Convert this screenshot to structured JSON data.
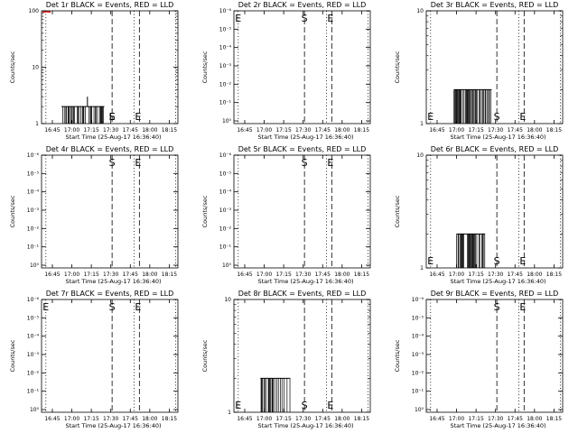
{
  "chart_data": [
    {
      "type": "bar",
      "title": "Det 1r BLACK = Events, RED = LLD",
      "xlabel": "Start Time (25-Aug-17 16:36:40)",
      "ylabel": "Counts/sec",
      "x_ticks": [
        "16:45",
        "17:00",
        "17:15",
        "17:30",
        "17:45",
        "18:00",
        "18:15"
      ],
      "y_ticks": [
        "1",
        "10",
        "100"
      ],
      "y_scale": "log",
      "ylim": [
        1,
        100
      ],
      "events": {
        "x_range": [
          "16:52",
          "17:25"
        ],
        "level": 2,
        "spikes": [
          {
            "x": "17:12",
            "y": 3
          }
        ]
      },
      "lld": {
        "x_range": [
          "16:36",
          "16:42"
        ],
        "level": 100
      },
      "markers": [
        {
          "label": "E",
          "x": "17:31"
        },
        {
          "label": "S",
          "x": "17:31"
        },
        {
          "label": "E",
          "x": "17:51"
        }
      ]
    },
    {
      "type": "bar",
      "title": "Det 2r BLACK = Events, RED = LLD",
      "xlabel": "Start Time (25-Aug-17 16:36:40)",
      "ylabel": "Counts/sec",
      "x_ticks": [
        "16:45",
        "17:00",
        "17:15",
        "17:30",
        "17:45",
        "18:00",
        "18:15"
      ],
      "y_ticks": [
        "10⁰",
        "10⁻¹",
        "10⁻²",
        "10⁻³",
        "10⁻⁴",
        "10⁻⁵",
        "10⁻⁶"
      ],
      "y_scale": "log",
      "ylim": [
        1,
        1e-06
      ],
      "markers": [
        {
          "label": "E",
          "x": "16:40"
        },
        {
          "label": "S",
          "x": "17:31"
        },
        {
          "label": "E",
          "x": "17:51"
        }
      ]
    },
    {
      "type": "bar",
      "title": "Det 3r BLACK = Events, RED = LLD",
      "xlabel": "Start Time (25-Aug-17 16:36:40)",
      "ylabel": "Counts/sec",
      "x_ticks": [
        "16:45",
        "17:00",
        "17:15",
        "17:30",
        "17:45",
        "18:00",
        "18:15"
      ],
      "y_ticks": [
        "1",
        "10"
      ],
      "y_scale": "log",
      "ylim": [
        1,
        10
      ],
      "events": {
        "x_range": [
          "16:58",
          "17:27"
        ],
        "level": 2
      },
      "markers": [
        {
          "label": "E",
          "x": "16:40"
        },
        {
          "label": "S",
          "x": "17:31"
        },
        {
          "label": "E",
          "x": "17:51"
        }
      ]
    },
    {
      "type": "bar",
      "title": "Det 4r BLACK = Events, RED = LLD",
      "xlabel": "Start Time (25-Aug-17 16:36:40)",
      "ylabel": "Counts/sec",
      "x_ticks": [
        "16:45",
        "17:00",
        "17:15",
        "17:30",
        "17:45",
        "18:00",
        "18:15"
      ],
      "y_ticks": [
        "10⁰",
        "10⁻¹",
        "10⁻²",
        "10⁻³",
        "10⁻⁴",
        "10⁻⁵",
        "10⁻⁶"
      ],
      "y_scale": "log",
      "ylim": [
        1,
        1e-06
      ],
      "markers": [
        {
          "label": "S",
          "x": "17:31"
        },
        {
          "label": "E",
          "x": "17:51"
        }
      ]
    },
    {
      "type": "bar",
      "title": "Det 5r BLACK = Events, RED = LLD",
      "xlabel": "Start Time (25-Aug-17 16:36:40)",
      "ylabel": "Counts/sec",
      "x_ticks": [
        "16:45",
        "17:00",
        "17:15",
        "17:30",
        "17:45",
        "18:00",
        "18:15"
      ],
      "y_ticks": [
        "10⁰",
        "10⁻¹",
        "10⁻²",
        "10⁻³",
        "10⁻⁴",
        "10⁻⁵",
        "10⁻⁶"
      ],
      "y_scale": "log",
      "ylim": [
        1,
        1e-06
      ],
      "markers": [
        {
          "label": "S",
          "x": "17:31"
        },
        {
          "label": "E",
          "x": "17:51"
        }
      ]
    },
    {
      "type": "bar",
      "title": "Det 6r BLACK = Events, RED = LLD",
      "xlabel": "Start Time (25-Aug-17 16:36:40)",
      "ylabel": "Counts/sec",
      "x_ticks": [
        "16:45",
        "17:00",
        "17:15",
        "17:30",
        "17:45",
        "18:00",
        "18:15"
      ],
      "y_ticks": [
        "1",
        "10"
      ],
      "y_scale": "log",
      "ylim": [
        1,
        10
      ],
      "events": {
        "x_range": [
          "17:00",
          "17:22"
        ],
        "level": 2
      },
      "markers": [
        {
          "label": "E",
          "x": "16:40"
        },
        {
          "label": "S",
          "x": "17:31"
        },
        {
          "label": "E",
          "x": "17:51"
        }
      ]
    },
    {
      "type": "bar",
      "title": "Det 7r BLACK = Events, RED = LLD",
      "xlabel": "Start Time (25-Aug-17 16:36:40)",
      "ylabel": "Counts/sec",
      "x_ticks": [
        "16:45",
        "17:00",
        "17:15",
        "17:30",
        "17:45",
        "18:00",
        "18:15"
      ],
      "y_ticks": [
        "10⁰",
        "10⁻¹",
        "10⁻²",
        "10⁻³",
        "10⁻⁴",
        "10⁻⁵",
        "10⁻⁶"
      ],
      "y_scale": "log",
      "ylim": [
        1,
        1e-06
      ],
      "markers": [
        {
          "label": "E",
          "x": "16:40"
        },
        {
          "label": "S",
          "x": "17:31"
        },
        {
          "label": "E",
          "x": "17:51"
        }
      ]
    },
    {
      "type": "bar",
      "title": "Det 8r BLACK = Events, RED = LLD",
      "xlabel": "Start Time (25-Aug-17 16:36:40)",
      "ylabel": "Counts/sec",
      "x_ticks": [
        "16:45",
        "17:00",
        "17:15",
        "17:30",
        "17:45",
        "18:00",
        "18:15"
      ],
      "y_ticks": [
        "1",
        "10"
      ],
      "y_scale": "log",
      "ylim": [
        1,
        10
      ],
      "events": {
        "x_range": [
          "16:57",
          "17:20"
        ],
        "level": 2
      },
      "markers": [
        {
          "label": "E",
          "x": "16:40"
        },
        {
          "label": "S",
          "x": "17:31"
        },
        {
          "label": "E",
          "x": "17:51"
        }
      ]
    },
    {
      "type": "bar",
      "title": "Det 9r BLACK = Events, RED = LLD",
      "xlabel": "Start Time (25-Aug-17 16:36:40)",
      "ylabel": "Counts/sec",
      "x_ticks": [
        "16:45",
        "17:00",
        "17:15",
        "17:30",
        "17:45",
        "18:00",
        "18:15"
      ],
      "y_ticks": [
        "10⁰",
        "10⁻¹",
        "10⁻²",
        "10⁻³",
        "10⁻⁴",
        "10⁻⁵",
        "10⁻⁶"
      ],
      "y_scale": "log",
      "ylim": [
        1,
        1e-06
      ],
      "markers": [
        {
          "label": "S",
          "x": "17:31"
        },
        {
          "label": "E",
          "x": "17:51"
        }
      ]
    }
  ]
}
